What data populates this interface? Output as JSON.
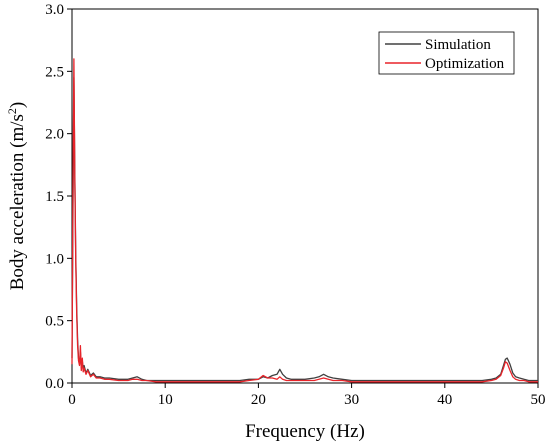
{
  "chart_data": {
    "type": "line",
    "xlabel": "Frequency (Hz)",
    "ylabel_main": "Body acceleration (m/s",
    "ylabel_sup": "2",
    "ylabel_close": ")",
    "xlim": [
      0,
      50
    ],
    "ylim": [
      0,
      3.0
    ],
    "xticks": [
      0,
      10,
      20,
      30,
      40,
      50
    ],
    "yticks": [
      0.0,
      0.5,
      1.0,
      1.5,
      2.0,
      2.5,
      3.0
    ],
    "xtick_labels": [
      "0",
      "10",
      "20",
      "30",
      "40",
      "50"
    ],
    "ytick_labels": [
      "0.0",
      "0.5",
      "1.0",
      "1.5",
      "2.0",
      "2.5",
      "3.0"
    ],
    "legend_position": "top-right",
    "grid": false,
    "series": [
      {
        "name": "Simulation",
        "color": "#404040",
        "x": [
          0,
          0.1,
          0.2,
          0.3,
          0.4,
          0.5,
          0.6,
          0.7,
          0.8,
          0.9,
          1.0,
          1.1,
          1.2,
          1.3,
          1.5,
          1.7,
          2.0,
          2.3,
          2.6,
          3.0,
          3.5,
          4.0,
          5.0,
          6.0,
          6.5,
          7.0,
          7.5,
          8.0,
          9.0,
          10,
          12,
          14,
          16,
          18,
          19,
          20,
          20.5,
          21,
          21.5,
          22,
          22.3,
          22.6,
          23,
          23.5,
          24,
          25,
          26,
          26.5,
          27,
          27.5,
          28,
          29,
          30,
          31,
          32,
          34,
          36,
          38,
          40,
          42,
          44,
          45,
          45.5,
          46,
          46.3,
          46.5,
          46.7,
          47,
          47.3,
          47.6,
          48,
          48.5,
          49,
          49.5,
          50
        ],
        "y": [
          0.2,
          1.3,
          2.45,
          1.7,
          1.05,
          0.6,
          0.35,
          0.2,
          0.15,
          0.25,
          0.12,
          0.18,
          0.1,
          0.14,
          0.08,
          0.11,
          0.06,
          0.08,
          0.05,
          0.05,
          0.04,
          0.04,
          0.03,
          0.03,
          0.04,
          0.05,
          0.03,
          0.02,
          0.02,
          0.02,
          0.02,
          0.02,
          0.02,
          0.02,
          0.03,
          0.03,
          0.05,
          0.04,
          0.06,
          0.07,
          0.11,
          0.07,
          0.04,
          0.03,
          0.03,
          0.03,
          0.04,
          0.05,
          0.07,
          0.05,
          0.04,
          0.03,
          0.02,
          0.02,
          0.02,
          0.02,
          0.02,
          0.02,
          0.02,
          0.02,
          0.02,
          0.03,
          0.04,
          0.07,
          0.14,
          0.19,
          0.2,
          0.15,
          0.08,
          0.05,
          0.04,
          0.03,
          0.02,
          0.02,
          0.02
        ]
      },
      {
        "name": "Optimization",
        "color": "#e8242a",
        "x": [
          0,
          0.1,
          0.2,
          0.3,
          0.4,
          0.5,
          0.6,
          0.7,
          0.8,
          0.9,
          1.0,
          1.1,
          1.2,
          1.3,
          1.5,
          1.7,
          2.0,
          2.3,
          2.6,
          3.0,
          3.5,
          4.0,
          5.0,
          6.0,
          6.5,
          7.0,
          7.5,
          8.0,
          9.0,
          10,
          12,
          14,
          16,
          18,
          19,
          20,
          20.5,
          21,
          21.5,
          22,
          22.3,
          22.6,
          23,
          23.5,
          24,
          25,
          26,
          26.5,
          27,
          27.5,
          28,
          29,
          30,
          31,
          32,
          34,
          36,
          38,
          40,
          42,
          44,
          45,
          45.5,
          46,
          46.3,
          46.5,
          46.7,
          47,
          47.3,
          47.6,
          48,
          48.5,
          49,
          49.5,
          50
        ],
        "y": [
          0.15,
          1.5,
          2.6,
          1.65,
          1.0,
          0.55,
          0.3,
          0.18,
          0.14,
          0.3,
          0.1,
          0.2,
          0.09,
          0.12,
          0.07,
          0.1,
          0.05,
          0.07,
          0.04,
          0.04,
          0.03,
          0.03,
          0.02,
          0.02,
          0.03,
          0.03,
          0.02,
          0.02,
          0.01,
          0.01,
          0.01,
          0.01,
          0.01,
          0.01,
          0.02,
          0.03,
          0.06,
          0.04,
          0.04,
          0.03,
          0.05,
          0.03,
          0.02,
          0.02,
          0.02,
          0.02,
          0.02,
          0.03,
          0.04,
          0.03,
          0.02,
          0.02,
          0.01,
          0.01,
          0.01,
          0.01,
          0.01,
          0.01,
          0.01,
          0.01,
          0.01,
          0.02,
          0.03,
          0.06,
          0.12,
          0.17,
          0.16,
          0.1,
          0.05,
          0.03,
          0.02,
          0.02,
          0.01,
          0.01,
          0.01
        ]
      }
    ]
  }
}
